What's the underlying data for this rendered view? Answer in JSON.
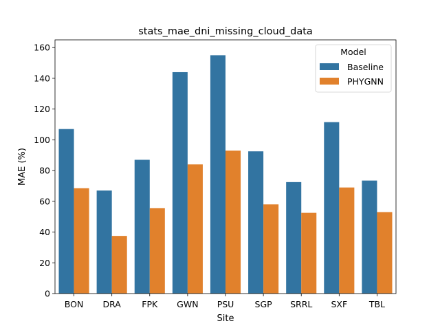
{
  "chart_data": {
    "type": "bar",
    "title": "stats_mae_dni_missing_cloud_data",
    "xlabel": "Site",
    "ylabel": "MAE (%)",
    "categories": [
      "BON",
      "DRA",
      "FPK",
      "GWN",
      "PSU",
      "SGP",
      "SRRL",
      "SXF",
      "TBL"
    ],
    "series": [
      {
        "name": "Baseline",
        "color": "#3274a1",
        "values": [
          107,
          67,
          87,
          144,
          155,
          92.5,
          72.5,
          111.5,
          73.5
        ]
      },
      {
        "name": "PHYGNN",
        "color": "#e1812c",
        "values": [
          68.5,
          37.5,
          55.5,
          84,
          93,
          58,
          52.5,
          69,
          53
        ]
      }
    ],
    "ylim": [
      0,
      165
    ],
    "yticks": [
      0,
      20,
      40,
      60,
      80,
      100,
      120,
      140,
      160
    ],
    "legend": {
      "title": "Model",
      "placement": "top-right"
    },
    "grid": false
  }
}
